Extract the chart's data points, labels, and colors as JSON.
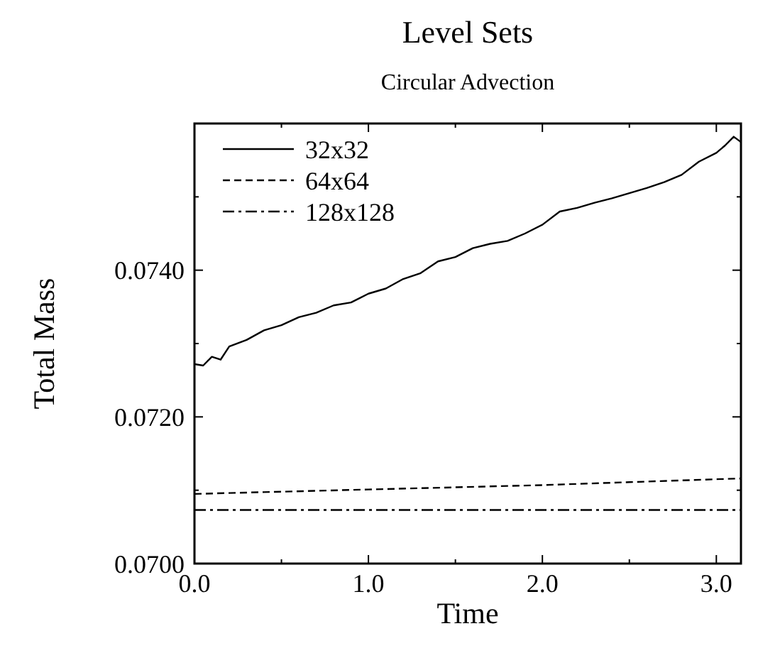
{
  "chart_data": {
    "type": "line",
    "title": "Level Sets",
    "subtitle": "Circular Advection",
    "xlabel": "Time",
    "ylabel": "Total Mass",
    "xlim": [
      0,
      3.1416
    ],
    "ylim": [
      0.07,
      0.076
    ],
    "xticks": [
      {
        "value": 0,
        "label": "0.0"
      },
      {
        "value": 0.5,
        "label": null
      },
      {
        "value": 1,
        "label": "1.0"
      },
      {
        "value": 1.5,
        "label": null
      },
      {
        "value": 2,
        "label": "2.0"
      },
      {
        "value": 2.5,
        "label": null
      },
      {
        "value": 3,
        "label": "3.0"
      }
    ],
    "yticks": [
      {
        "value": 0.07,
        "label": "0.0700"
      },
      {
        "value": 0.071,
        "label": null
      },
      {
        "value": 0.072,
        "label": "0.0720"
      },
      {
        "value": 0.073,
        "label": null
      },
      {
        "value": 0.074,
        "label": "0.0740"
      },
      {
        "value": 0.075,
        "label": null
      }
    ],
    "grid": false,
    "legend": "top left",
    "series": [
      {
        "name": "32x32",
        "color": "#000000",
        "line_style": "solid",
        "x": [
          0,
          0.05,
          0.1,
          0.15,
          0.2,
          0.3,
          0.4,
          0.5,
          0.6,
          0.7,
          0.8,
          0.9,
          1.0,
          1.1,
          1.2,
          1.3,
          1.4,
          1.5,
          1.6,
          1.7,
          1.8,
          1.9,
          2.0,
          2.1,
          2.2,
          2.3,
          2.4,
          2.5,
          2.6,
          2.7,
          2.8,
          2.9,
          3.0,
          3.05,
          3.1,
          3.14
        ],
        "values": [
          0.07272,
          0.0727,
          0.07282,
          0.07278,
          0.07296,
          0.07305,
          0.07318,
          0.07325,
          0.07336,
          0.07342,
          0.07352,
          0.07356,
          0.07368,
          0.07375,
          0.07388,
          0.07396,
          0.07412,
          0.07418,
          0.0743,
          0.07436,
          0.0744,
          0.0745,
          0.07462,
          0.0748,
          0.07485,
          0.07492,
          0.07498,
          0.07505,
          0.07512,
          0.0752,
          0.0753,
          0.07548,
          0.0756,
          0.0757,
          0.07582,
          0.07575
        ]
      },
      {
        "name": "64x64",
        "color": "#000000",
        "line_style": "dashed",
        "x": [
          0,
          0.5,
          1,
          1.5,
          2,
          2.5,
          3,
          3.14
        ],
        "values": [
          0.07095,
          0.07098,
          0.07101,
          0.07104,
          0.07107,
          0.07111,
          0.07115,
          0.07116
        ]
      },
      {
        "name": "128x128",
        "color": "#000000",
        "line_style": "dashdot",
        "x": [
          0,
          1,
          2,
          3,
          3.14
        ],
        "values": [
          0.07073,
          0.07073,
          0.07073,
          0.07073,
          0.07073
        ]
      }
    ]
  }
}
